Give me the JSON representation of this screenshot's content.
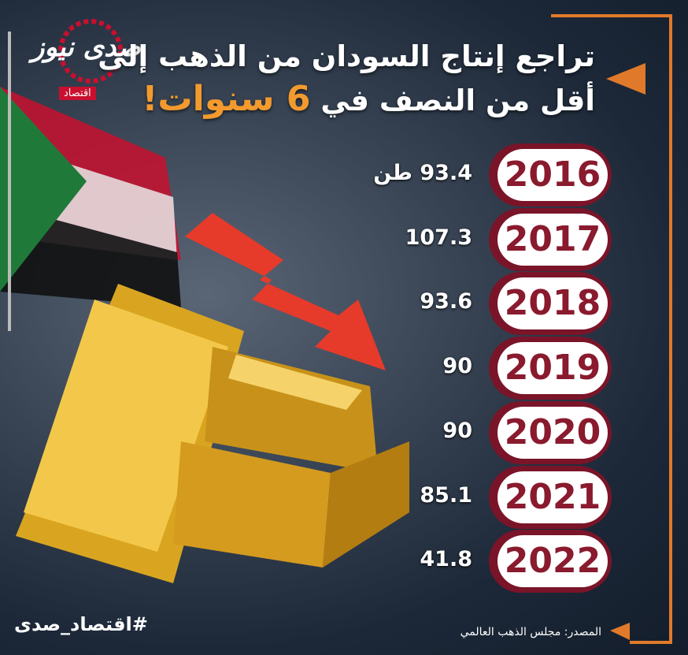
{
  "logo": {
    "name": "صدى نيوز",
    "section": "اقتصاد"
  },
  "title": {
    "line1": "تراجع إنتاج السودان من الذهب إلى",
    "line2": "أقل من النصف في",
    "highlight": "6 سنوات!"
  },
  "rows": [
    {
      "year": "2016",
      "value": "93.4 طن"
    },
    {
      "year": "2017",
      "value": "107.3"
    },
    {
      "year": "2018",
      "value": "93.6"
    },
    {
      "year": "2019",
      "value": "90"
    },
    {
      "year": "2020",
      "value": "90"
    },
    {
      "year": "2021",
      "value": "85.1"
    },
    {
      "year": "2022",
      "value": "41.8"
    }
  ],
  "hashtag": "#اقتصاد_صدى",
  "source": "المصدر: مجلس الذهب العالمي"
}
